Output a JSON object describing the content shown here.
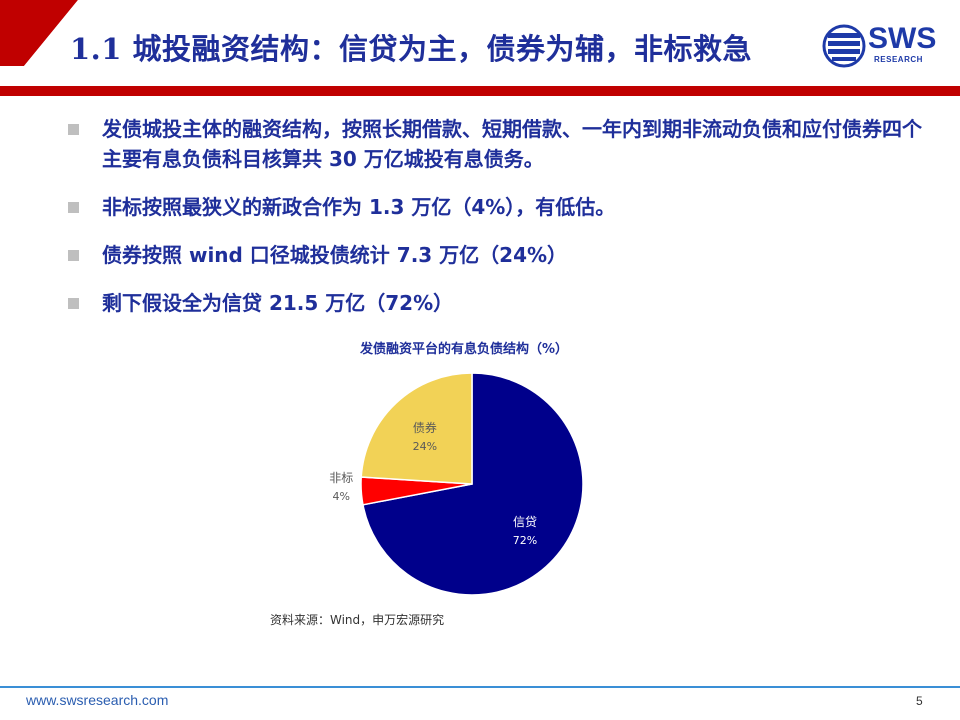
{
  "header": {
    "title": "1.1 城投融资结构：信贷为主，债券为辅，非标救急",
    "logo_text": "SWS",
    "logo_sub": "RESEARCH",
    "brand_color": "#1e3aa8",
    "accent_color": "#c00000"
  },
  "bullets": [
    "发债城投主体的融资结构，按照长期借款、短期借款、一年内到期非流动负债和应付债券四个主要有息负债科目核算共 30 万亿城投有息债务。",
    "非标按照最狭义的新政合作为 1.3 万亿（4%），有低估。",
    "债券按照 wind 口径城投债统计 7.3 万亿（24%）",
    "剩下假设全为信贷 21.5 万亿（72%）"
  ],
  "chart_data": {
    "type": "pie",
    "title": "发债融资平台的有息负债结构（%）",
    "slices": [
      {
        "label": "信贷",
        "value": 72,
        "value_label": "72%",
        "color": "#00008b"
      },
      {
        "label": "非标",
        "value": 4,
        "value_label": "4%",
        "color": "#ff0000"
      },
      {
        "label": "债券",
        "value": 24,
        "value_label": "24%",
        "color": "#f2d256"
      }
    ],
    "start": "12 o'clock",
    "direction": "clockwise"
  },
  "source": "资料来源：Wind，申万宏源研究",
  "footer": {
    "url": "www.swsresearch.com",
    "page": "5"
  }
}
